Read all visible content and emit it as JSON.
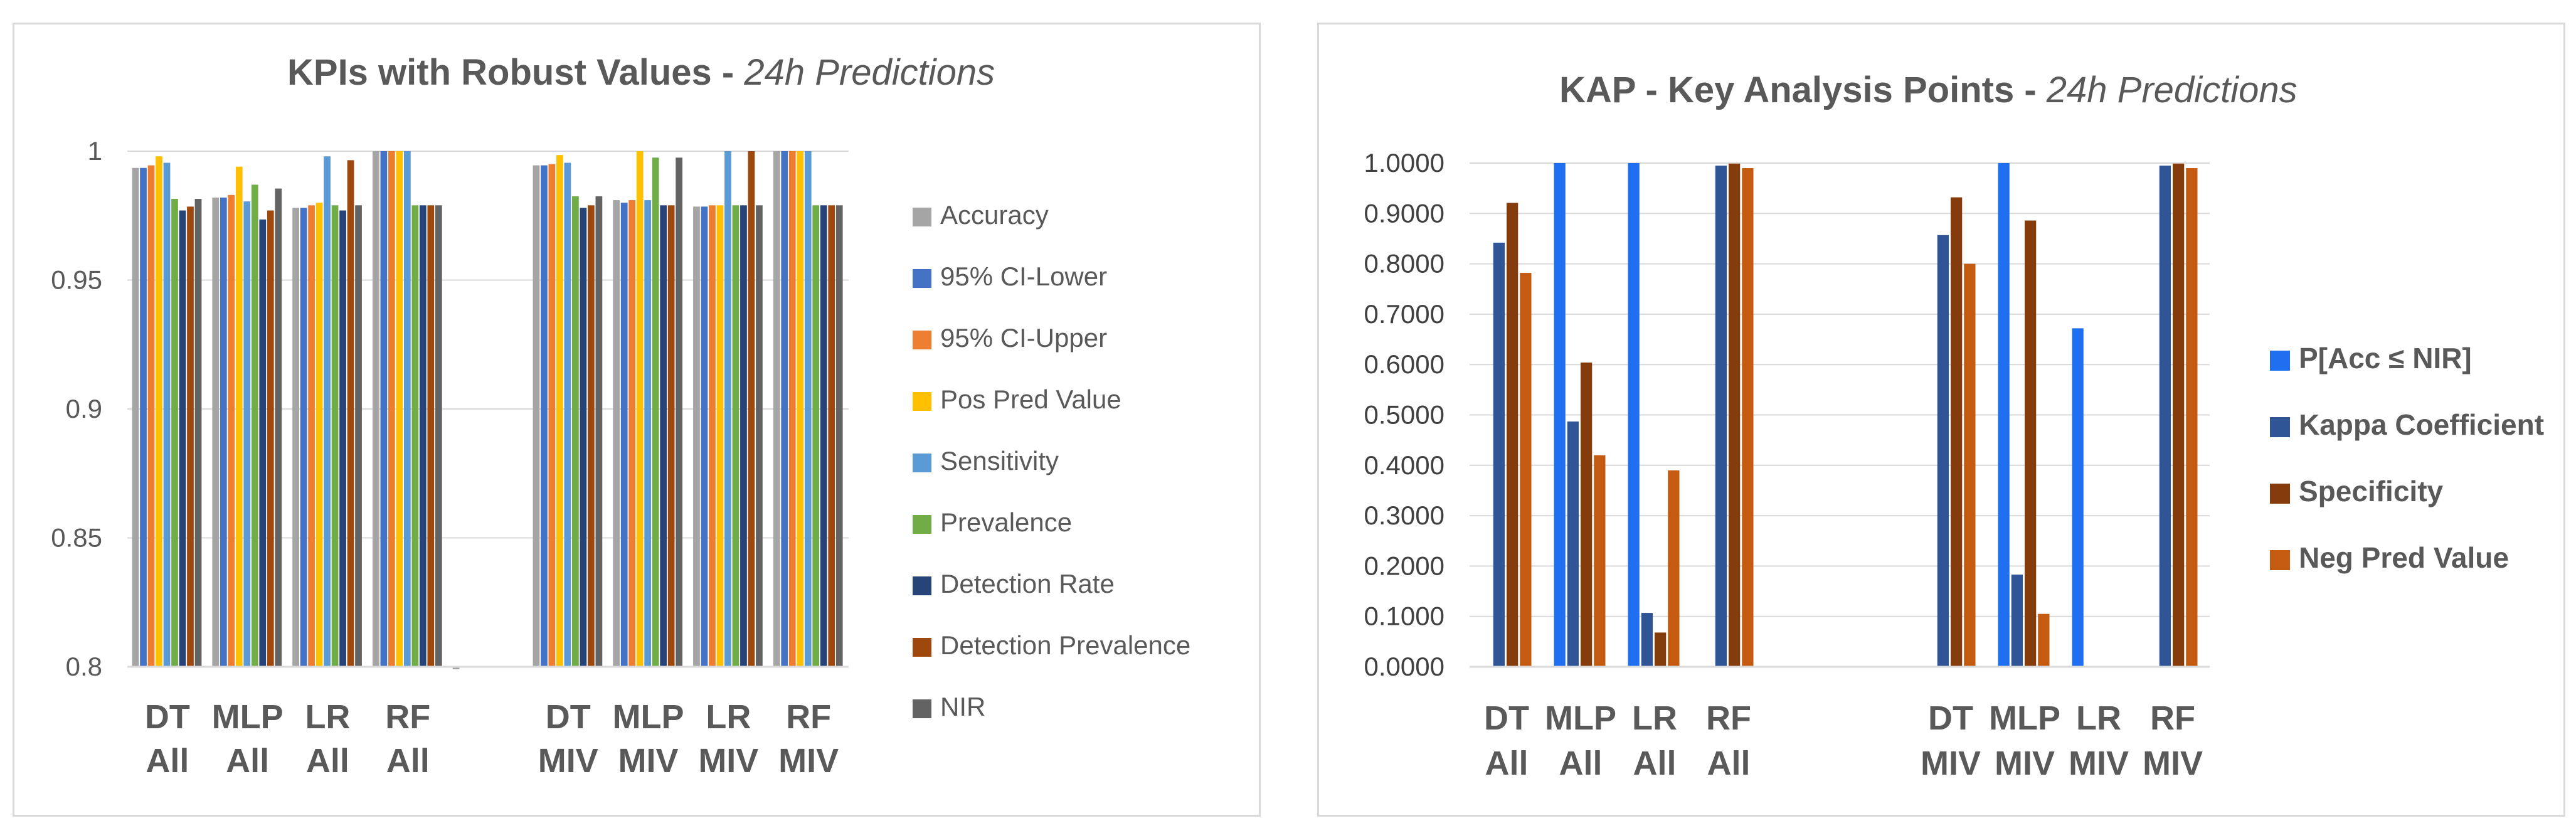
{
  "chart_data": [
    {
      "type": "bar",
      "title": "KPIs with Robust Values - ",
      "subtitle": "24h Predictions",
      "ylim": [
        0.8,
        1
      ],
      "yticks": [
        "0.8",
        "0.85",
        "0.9",
        "0.95",
        "1"
      ],
      "categories": [
        {
          "top": "DT",
          "bottom": "All"
        },
        {
          "top": "MLP",
          "bottom": "All"
        },
        {
          "top": "LR",
          "bottom": "All"
        },
        {
          "top": "RF",
          "bottom": "All"
        },
        {
          "top": "",
          "bottom": ""
        },
        {
          "top": "DT",
          "bottom": "MIV"
        },
        {
          "top": "MLP",
          "bottom": "MIV"
        },
        {
          "top": "LR",
          "bottom": "MIV"
        },
        {
          "top": "RF",
          "bottom": "MIV"
        }
      ],
      "series": [
        {
          "name": "Accuracy",
          "color": "#a5a5a5",
          "values": [
            0.9935,
            0.982,
            0.978,
            1.0,
            0.7995,
            0.9945,
            0.981,
            0.9785,
            1.0
          ]
        },
        {
          "name": "95% CI-Lower",
          "color": "#4472c4",
          "values": [
            0.9935,
            0.982,
            0.978,
            1.0,
            null,
            0.9945,
            0.98,
            0.9785,
            1.0
          ]
        },
        {
          "name": "95% CI-Upper",
          "color": "#ed7d31",
          "values": [
            0.9945,
            0.983,
            0.979,
            1.0,
            null,
            0.995,
            0.981,
            0.979,
            1.0
          ]
        },
        {
          "name": "Pos Pred Value",
          "color": "#ffc000",
          "values": [
            0.998,
            0.994,
            0.98,
            1.0,
            null,
            0.9985,
            1.0,
            0.979,
            1.0
          ]
        },
        {
          "name": "Sensitivity",
          "color": "#5b9bd5",
          "values": [
            0.9955,
            0.9805,
            0.998,
            1.0,
            null,
            0.9955,
            0.981,
            1.0,
            1.0
          ]
        },
        {
          "name": "Prevalence",
          "color": "#70ad47",
          "values": [
            0.9815,
            0.987,
            0.979,
            0.979,
            null,
            0.9825,
            0.9975,
            0.979,
            0.979
          ]
        },
        {
          "name": "Detection Rate",
          "color": "#264478",
          "values": [
            0.977,
            0.9735,
            0.977,
            0.979,
            null,
            0.978,
            0.979,
            0.979,
            0.979
          ]
        },
        {
          "name": "Detection Prevalence",
          "color": "#9e480e",
          "values": [
            0.9785,
            0.977,
            0.9965,
            0.979,
            null,
            0.979,
            0.979,
            1.0,
            0.979
          ]
        },
        {
          "name": "NIR",
          "color": "#636363",
          "values": [
            0.9815,
            0.9855,
            0.979,
            0.979,
            null,
            0.9825,
            0.9975,
            0.979,
            0.979
          ]
        }
      ]
    },
    {
      "type": "bar",
      "title": "KAP - Key Analysis Points - ",
      "subtitle": "24h Predictions",
      "ylim": [
        0,
        1
      ],
      "yticks": [
        "0.0000",
        "0.1000",
        "0.2000",
        "0.3000",
        "0.4000",
        "0.5000",
        "0.6000",
        "0.7000",
        "0.8000",
        "0.9000",
        "1.0000"
      ],
      "categories": [
        {
          "top": "DT",
          "bottom": "All"
        },
        {
          "top": "MLP",
          "bottom": "All"
        },
        {
          "top": "LR",
          "bottom": "All"
        },
        {
          "top": "RF",
          "bottom": "All"
        },
        {
          "top": "",
          "bottom": ""
        },
        {
          "top": "",
          "bottom": ""
        },
        {
          "top": "DT",
          "bottom": "MIV"
        },
        {
          "top": "MLP",
          "bottom": "MIV"
        },
        {
          "top": "LR",
          "bottom": "MIV"
        },
        {
          "top": "RF",
          "bottom": "MIV"
        }
      ],
      "series": [
        {
          "name": "P[Acc ≤ NIR]",
          "color": "#1f6ff0",
          "values": [
            0.0,
            1.0,
            1.0,
            0.0,
            null,
            null,
            0.0,
            1.0,
            0.672,
            0.0
          ]
        },
        {
          "name": "Kappa Coefficient",
          "color": "#2f5597",
          "values": [
            0.842,
            0.487,
            0.107,
            0.995,
            null,
            null,
            0.857,
            0.183,
            0.0,
            0.995
          ]
        },
        {
          "name": "Specificity",
          "color": "#843c0c",
          "values": [
            0.921,
            0.604,
            0.068,
            0.999,
            null,
            null,
            0.932,
            0.886,
            0.0,
            0.999
          ]
        },
        {
          "name": "Neg Pred Value",
          "color": "#c55a11",
          "values": [
            0.782,
            0.42,
            0.39,
            0.99,
            null,
            null,
            0.8,
            0.105,
            0.0,
            0.99
          ]
        }
      ]
    }
  ]
}
